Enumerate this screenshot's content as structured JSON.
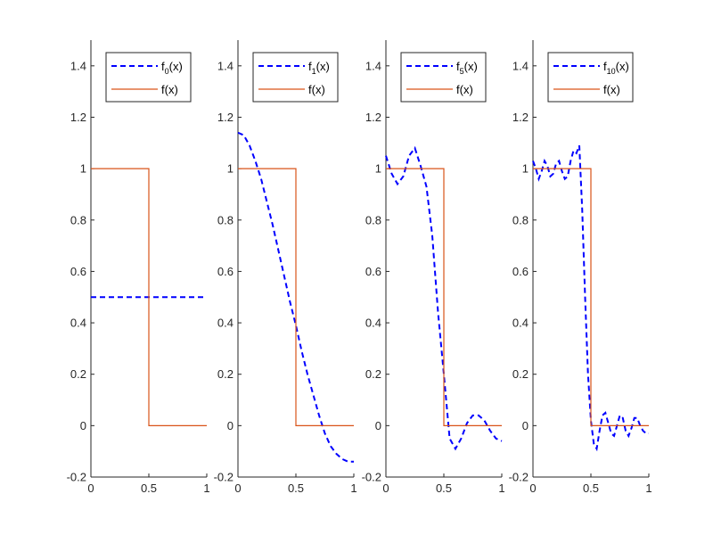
{
  "figure": {
    "description_free": true,
    "colors": {
      "approx": "#0000ff",
      "target": "#d95319",
      "axis": "#262626",
      "background": "#ffffff"
    }
  },
  "chart_data": [
    {
      "type": "line",
      "panel": "f0",
      "xlim": [
        0,
        1
      ],
      "ylim": [
        -0.2,
        1.5
      ],
      "xticks": [
        "0",
        "0.5",
        "1"
      ],
      "yticks": [
        "-0.2",
        "0",
        "0.2",
        "0.4",
        "0.6",
        "0.8",
        "1",
        "1.2",
        "1.4"
      ],
      "legend": {
        "position": "top",
        "entries": [
          {
            "base": "f",
            "sub": "0",
            "suffix": "(x)",
            "style": "dashed"
          },
          {
            "base": "f(x)",
            "sub": "",
            "suffix": "",
            "style": "solid"
          }
        ]
      },
      "series": [
        {
          "name": "f0(x)",
          "style": "dashed",
          "x": [
            0,
            0.25,
            0.5,
            0.75,
            1
          ],
          "y": [
            0.5,
            0.5,
            0.5,
            0.5,
            0.5
          ]
        },
        {
          "name": "f(x)",
          "style": "solid",
          "x": [
            0,
            0.5,
            0.5,
            1
          ],
          "y": [
            1,
            1,
            0,
            0
          ]
        }
      ]
    },
    {
      "type": "line",
      "panel": "f1",
      "xlim": [
        0,
        1
      ],
      "ylim": [
        -0.2,
        1.5
      ],
      "xticks": [
        "0",
        "0.5",
        "1"
      ],
      "yticks": [
        "-0.2",
        "0",
        "0.2",
        "0.4",
        "0.6",
        "0.8",
        "1",
        "1.2",
        "1.4"
      ],
      "legend": {
        "position": "top",
        "entries": [
          {
            "base": "f",
            "sub": "1",
            "suffix": "(x)",
            "style": "dashed"
          },
          {
            "base": "f(x)",
            "sub": "",
            "suffix": "",
            "style": "solid"
          }
        ]
      },
      "series": [
        {
          "name": "f1(x)",
          "style": "dashed",
          "x": [
            0,
            0.05,
            0.1,
            0.15,
            0.2,
            0.25,
            0.3,
            0.35,
            0.4,
            0.45,
            0.5,
            0.55,
            0.6,
            0.65,
            0.7,
            0.75,
            0.8,
            0.85,
            0.9,
            0.95,
            1
          ],
          "y": [
            1.14,
            1.13,
            1.09,
            1.03,
            0.96,
            0.87,
            0.78,
            0.68,
            0.58,
            0.48,
            0.39,
            0.29,
            0.2,
            0.12,
            0.04,
            -0.03,
            -0.08,
            -0.11,
            -0.13,
            -0.14,
            -0.14
          ]
        },
        {
          "name": "f(x)",
          "style": "solid",
          "x": [
            0,
            0.5,
            0.5,
            1
          ],
          "y": [
            1,
            1,
            0,
            0
          ]
        }
      ]
    },
    {
      "type": "line",
      "panel": "f5",
      "xlim": [
        0,
        1
      ],
      "ylim": [
        -0.2,
        1.5
      ],
      "xticks": [
        "0",
        "0.5",
        "1"
      ],
      "yticks": [
        "-0.2",
        "0",
        "0.2",
        "0.4",
        "0.6",
        "0.8",
        "1",
        "1.2",
        "1.4"
      ],
      "legend": {
        "position": "top",
        "entries": [
          {
            "base": "f",
            "sub": "5",
            "suffix": "(x)",
            "style": "dashed"
          },
          {
            "base": "f(x)",
            "sub": "",
            "suffix": "",
            "style": "solid"
          }
        ]
      },
      "series": [
        {
          "name": "f5(x)",
          "style": "dashed",
          "x": [
            0,
            0.05,
            0.1,
            0.15,
            0.2,
            0.25,
            0.3,
            0.35,
            0.4,
            0.45,
            0.5,
            0.55,
            0.6,
            0.65,
            0.7,
            0.75,
            0.8,
            0.85,
            0.9,
            0.95,
            1
          ],
          "y": [
            1.05,
            0.98,
            0.94,
            0.97,
            1.05,
            1.08,
            1.01,
            0.93,
            0.74,
            0.44,
            0.2,
            -0.05,
            -0.09,
            -0.05,
            0.01,
            0.04,
            0.04,
            0.02,
            -0.02,
            -0.05,
            -0.06
          ]
        },
        {
          "name": "f(x)",
          "style": "solid",
          "x": [
            0,
            0.5,
            0.5,
            1
          ],
          "y": [
            1,
            1,
            0,
            0
          ]
        }
      ]
    },
    {
      "type": "line",
      "panel": "f10",
      "xlim": [
        0,
        1
      ],
      "ylim": [
        -0.2,
        1.5
      ],
      "xticks": [
        "0",
        "0.5",
        "1"
      ],
      "yticks": [
        "-0.2",
        "0",
        "0.2",
        "0.4",
        "0.6",
        "0.8",
        "1",
        "1.2",
        "1.4"
      ],
      "legend": {
        "position": "top",
        "entries": [
          {
            "base": "f",
            "sub": "10",
            "suffix": "(x)",
            "style": "dashed"
          },
          {
            "base": "f(x)",
            "sub": "",
            "suffix": "",
            "style": "solid"
          }
        ]
      },
      "series": [
        {
          "name": "f10(x)",
          "style": "dashed",
          "x": [
            0,
            0.025,
            0.05,
            0.075,
            0.1,
            0.125,
            0.15,
            0.175,
            0.2,
            0.225,
            0.25,
            0.275,
            0.3,
            0.325,
            0.35,
            0.375,
            0.4,
            0.425,
            0.45,
            0.475,
            0.5,
            0.525,
            0.55,
            0.575,
            0.6,
            0.625,
            0.65,
            0.675,
            0.7,
            0.725,
            0.75,
            0.775,
            0.8,
            0.825,
            0.85,
            0.875,
            0.9,
            0.925,
            0.95,
            0.975,
            1
          ],
          "y": [
            1.03,
            1.0,
            0.96,
            0.99,
            1.03,
            1.01,
            0.97,
            0.98,
            1.02,
            1.03,
            0.99,
            0.96,
            0.97,
            1.03,
            1.07,
            1.06,
            1.09,
            0.84,
            0.5,
            0.2,
            0.02,
            -0.07,
            -0.09,
            -0.02,
            0.04,
            0.05,
            0.01,
            -0.03,
            -0.04,
            0.0,
            0.04,
            0.03,
            -0.02,
            -0.04,
            -0.01,
            0.03,
            0.03,
            0.0,
            -0.02,
            -0.03,
            -0.03
          ]
        },
        {
          "name": "f(x)",
          "style": "solid",
          "x": [
            0,
            0.5,
            0.5,
            1
          ],
          "y": [
            1,
            1,
            0,
            0
          ]
        }
      ]
    }
  ]
}
